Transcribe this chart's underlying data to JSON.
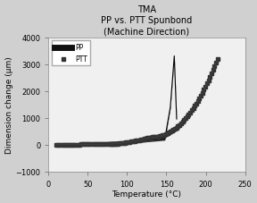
{
  "title_line1": "TMA",
  "title_line2": "PP vs. PTT Spunbond",
  "title_line3": "(Machine Direction)",
  "xlabel": "Temperature (°C)",
  "ylabel": "Dimension change (μm)",
  "xlim": [
    0,
    250
  ],
  "ylim": [
    -1000,
    4000
  ],
  "xticks": [
    0,
    50,
    100,
    150,
    200,
    250
  ],
  "yticks": [
    -1000,
    0,
    1000,
    2000,
    3000,
    4000
  ],
  "legend_labels": [
    "PP",
    "PTT"
  ],
  "fig_bg_color": "#d0d0d0",
  "plot_bg_color": "#f0f0f0",
  "line_color": "#111111",
  "title_fontsize": 7,
  "label_fontsize": 6.5,
  "tick_fontsize": 6
}
